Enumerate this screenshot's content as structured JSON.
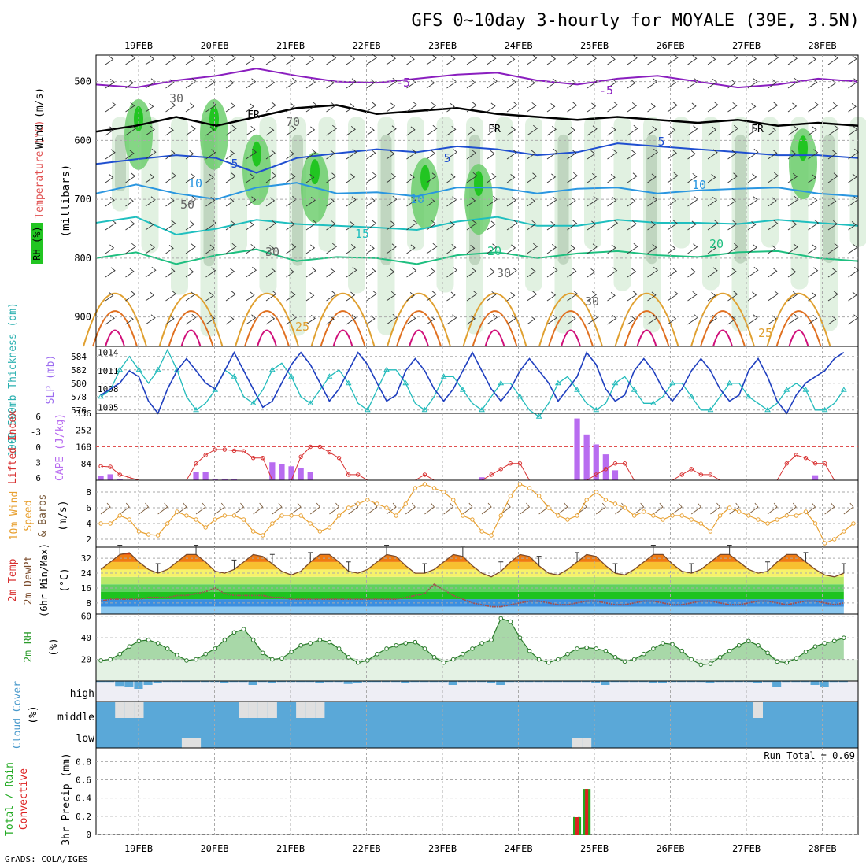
{
  "title": "GFS 0~10day 3-hourly for MOYALE (39E, 3.5N)",
  "credit": "GrADS: COLA/IGES",
  "date_labels": [
    "19FEB",
    "20FEB",
    "21FEB",
    "22FEB",
    "23FEB",
    "24FEB",
    "25FEB",
    "26FEB",
    "27FEB",
    "28FEB"
  ],
  "colors": {
    "rh": "#22c522",
    "temp_warm": "#e07020",
    "temp_cool": "#2050d0",
    "wind": "#000000",
    "thickness": "#22bbbb",
    "slp": "#1f3fbf",
    "lifted": "#d83030",
    "cape": "#b86cf0",
    "wind10": "#e8a030",
    "rh2m": "#2a9a2a",
    "cloud": "#5aa8d8",
    "precip_total": "#22aa22",
    "precip_conv": "#dd2222"
  },
  "chart_data": [
    {
      "type": "area",
      "panel": "upper-air",
      "labels": {
        "wind": "Wind (m/s)",
        "temperature": "Temperature (°C)",
        "rh": "RH (%)",
        "pressure": "(millibars)"
      },
      "ylim": [
        440,
        980
      ],
      "y_ticks": [
        500,
        600,
        700,
        800,
        900
      ],
      "contour_labels": [
        "-5",
        "-5",
        "FR",
        "FR",
        "FR",
        "5",
        "5",
        "5",
        "10",
        "10",
        "10",
        "15",
        "20",
        "20",
        "25",
        "25",
        "30",
        "30",
        "30",
        "30",
        "50",
        "70"
      ],
      "series": [
        {
          "name": "-5",
          "values": [
            505,
            510,
            498,
            490,
            478,
            490,
            500,
            502,
            495,
            488,
            485,
            498,
            505,
            495,
            490,
            500,
            510,
            505,
            495,
            500
          ]
        },
        {
          "name": "FR",
          "values": [
            585,
            575,
            560,
            575,
            560,
            545,
            540,
            555,
            550,
            545,
            555,
            560,
            565,
            560,
            565,
            570,
            565,
            575,
            570,
            575
          ]
        },
        {
          "name": "5",
          "values": [
            640,
            632,
            625,
            630,
            655,
            630,
            622,
            615,
            620,
            610,
            615,
            625,
            620,
            605,
            610,
            615,
            620,
            625,
            625,
            630
          ]
        },
        {
          "name": "10",
          "values": [
            690,
            675,
            690,
            700,
            680,
            672,
            690,
            688,
            695,
            680,
            680,
            690,
            682,
            680,
            690,
            685,
            682,
            680,
            690,
            695
          ]
        },
        {
          "name": "15",
          "values": [
            740,
            730,
            760,
            750,
            735,
            742,
            745,
            748,
            752,
            738,
            730,
            745,
            745,
            735,
            740,
            740,
            742,
            735,
            740,
            745
          ]
        },
        {
          "name": "20",
          "values": [
            800,
            790,
            810,
            795,
            785,
            805,
            798,
            800,
            810,
            795,
            790,
            800,
            792,
            788,
            795,
            798,
            790,
            788,
            800,
            805
          ]
        }
      ]
    },
    {
      "type": "line",
      "panel": "thickness-slp",
      "labels": {
        "left": "1000-500mb Thickness (dm)",
        "right": "SLP (mb)"
      },
      "left_ticks": [
        "584",
        "582",
        "580",
        "578",
        "576"
      ],
      "right_ticks": [
        "1014",
        "1011",
        "1008",
        "1005"
      ],
      "left_ylim": [
        575.5,
        585.5
      ],
      "right_ylim": [
        1004,
        1015
      ],
      "series": [
        {
          "name": "thickness",
          "axis": "left",
          "values": [
            578,
            579,
            582,
            584,
            582,
            580,
            582,
            585,
            582,
            578,
            576,
            577,
            579,
            582,
            581,
            578,
            577,
            579,
            582,
            583,
            581,
            578,
            577,
            579,
            581,
            582,
            580,
            577,
            576,
            579,
            582,
            582,
            580,
            577,
            576,
            578,
            581,
            581,
            579,
            577,
            576,
            578,
            580,
            580,
            578,
            576,
            575,
            577,
            580,
            581,
            579,
            577,
            576,
            577,
            580,
            581,
            579,
            577,
            577,
            578,
            580,
            580,
            578,
            576,
            576,
            578,
            580,
            580,
            578,
            577,
            576,
            577,
            579,
            580,
            579,
            576,
            576,
            577,
            579
          ]
        },
        {
          "name": "slp",
          "axis": "right",
          "values": [
            1007,
            1008,
            1009,
            1011,
            1010,
            1006,
            1004,
            1008,
            1011,
            1013,
            1011,
            1009,
            1008,
            1011,
            1014,
            1011,
            1008,
            1005,
            1006,
            1009,
            1012,
            1014,
            1012,
            1009,
            1006,
            1008,
            1011,
            1014,
            1012,
            1009,
            1006,
            1007,
            1011,
            1013,
            1011,
            1008,
            1006,
            1008,
            1011,
            1014,
            1011,
            1008,
            1006,
            1008,
            1011,
            1013,
            1011,
            1009,
            1006,
            1008,
            1010,
            1014,
            1012,
            1008,
            1006,
            1007,
            1011,
            1013,
            1011,
            1008,
            1006,
            1008,
            1011,
            1013,
            1011,
            1008,
            1006,
            1007,
            1011,
            1013,
            1010,
            1006,
            1004,
            1007,
            1009,
            1010,
            1011,
            1013,
            1014
          ]
        }
      ]
    },
    {
      "type": "bar",
      "panel": "lifted-cape",
      "labels": {
        "left": "Lifted Index",
        "right": "CAPE (J/kg)"
      },
      "left_ticks": [
        "6",
        "-3",
        "0",
        "3",
        "6"
      ],
      "right_ticks": [
        "336",
        "252",
        "168",
        "84"
      ],
      "cape_ylim": [
        0,
        336
      ],
      "lifted_ylim": [
        6,
        -6
      ],
      "lifted_index": [
        3.5,
        3.6,
        5,
        5.5,
        6,
        6,
        6,
        6,
        6,
        6,
        3,
        1.5,
        0.5,
        0.5,
        0.7,
        0.8,
        2,
        2,
        6,
        6,
        6,
        1.8,
        0,
        0,
        1,
        2,
        5,
        5,
        6,
        6,
        6,
        6,
        6,
        6,
        5,
        6,
        6,
        6,
        6,
        6,
        6,
        5,
        4,
        3,
        3,
        6,
        6,
        6,
        6,
        6,
        6,
        6,
        5,
        4,
        3,
        3,
        6,
        6,
        6,
        6,
        6,
        5,
        4,
        5,
        5,
        6,
        6,
        6,
        6,
        6,
        6,
        6,
        3,
        1.5,
        2,
        3,
        3,
        6,
        6,
        6
      ],
      "cape": [
        20,
        30,
        5,
        0,
        0,
        0,
        0,
        0,
        0,
        0,
        40,
        40,
        8,
        8,
        6,
        0,
        0,
        0,
        90,
        80,
        70,
        60,
        40,
        0,
        0,
        0,
        0,
        0,
        0,
        0,
        0,
        0,
        0,
        0,
        0,
        0,
        0,
        0,
        0,
        0,
        15,
        0,
        0,
        0,
        0,
        0,
        0,
        0,
        0,
        0,
        310,
        230,
        180,
        130,
        50,
        0,
        0,
        0,
        0,
        0,
        0,
        0,
        0,
        0,
        0,
        0,
        0,
        0,
        0,
        0,
        0,
        0,
        0,
        0,
        0,
        25,
        0,
        0,
        0,
        0
      ]
    },
    {
      "type": "line",
      "panel": "wind10m",
      "labels": {
        "left": "10m Wind Speed & Barbs (m/s)"
      },
      "y_ticks": [
        "8",
        "6",
        "4",
        "2"
      ],
      "ylim": [
        1,
        9.5
      ],
      "values": [
        4,
        4,
        5,
        4.5,
        3,
        2.6,
        2.5,
        4,
        5.5,
        5,
        4.5,
        3.5,
        4.5,
        5,
        5,
        4.5,
        3,
        2.5,
        4,
        5,
        5,
        5,
        4,
        3,
        3.5,
        5,
        6,
        6.5,
        7,
        6.5,
        6,
        5,
        6.5,
        8.5,
        9,
        8.5,
        8,
        7,
        5,
        4.5,
        3,
        2.5,
        5,
        7.5,
        9,
        8.5,
        7.5,
        6,
        5,
        4.5,
        5,
        7,
        8,
        7,
        6.5,
        6,
        5,
        5.5,
        5,
        4.5,
        5,
        5,
        4.5,
        4,
        3,
        5,
        6,
        5.5,
        5,
        4.5,
        4,
        4.5,
        5,
        5,
        5.5,
        4,
        1.5,
        2,
        3,
        4
      ]
    },
    {
      "type": "area",
      "panel": "temp2m",
      "labels": {
        "left": "2m Temp 2m DewPt (6hr Min/Max) (°C)"
      },
      "y_ticks": [
        "32",
        "24",
        "16",
        "8"
      ],
      "ylim": [
        2,
        38
      ],
      "temperature": [
        26,
        30,
        34,
        35,
        30,
        26,
        24,
        26,
        30,
        34,
        34,
        30,
        25,
        24,
        26,
        30,
        34,
        33,
        29,
        25,
        23,
        25,
        30,
        34,
        34,
        30,
        25,
        24,
        26,
        30,
        34,
        33,
        28,
        24,
        24,
        26,
        30,
        34,
        33,
        28,
        24,
        22,
        25,
        30,
        34,
        33,
        28,
        24,
        23,
        26,
        30,
        34,
        33,
        28,
        24,
        23,
        26,
        30,
        34,
        34,
        29,
        25,
        24,
        26,
        30,
        34,
        34,
        30,
        26,
        24,
        25,
        30,
        34,
        34,
        30,
        26,
        23,
        22,
        24
      ],
      "dewpoint": [
        9,
        10,
        10,
        10,
        10,
        11,
        11,
        11,
        12,
        12,
        13,
        14,
        16,
        13,
        12,
        12,
        12,
        12,
        11,
        11,
        10,
        10,
        10,
        10,
        10,
        10,
        10,
        10,
        10,
        10,
        10,
        10,
        11,
        12,
        13,
        18,
        15,
        12,
        10,
        8,
        7,
        6,
        6,
        7,
        8,
        9,
        9,
        8,
        7,
        7,
        8,
        9,
        9,
        8,
        7,
        7,
        8,
        9,
        9,
        8,
        7,
        7,
        8,
        9,
        9,
        8,
        7,
        7,
        8,
        9,
        9,
        8,
        7,
        8,
        9,
        9,
        8,
        7,
        8
      ]
    },
    {
      "type": "area",
      "panel": "rh2m",
      "labels": {
        "left": "2m RH (%)"
      },
      "y_ticks": [
        "60",
        "40",
        "20"
      ],
      "ylim": [
        0,
        62
      ],
      "values": [
        19,
        20,
        25,
        32,
        37,
        38,
        35,
        30,
        24,
        19,
        20,
        25,
        30,
        38,
        45,
        48,
        38,
        26,
        20,
        21,
        27,
        33,
        35,
        38,
        36,
        30,
        22,
        17,
        19,
        25,
        30,
        33,
        35,
        36,
        30,
        22,
        17,
        20,
        25,
        30,
        35,
        38,
        58,
        55,
        40,
        28,
        20,
        17,
        20,
        25,
        30,
        31,
        30,
        28,
        22,
        18,
        20,
        25,
        30,
        35,
        34,
        28,
        20,
        15,
        16,
        22,
        28,
        33,
        37,
        33,
        26,
        18,
        17,
        21,
        27,
        32,
        35,
        37,
        40
      ]
    },
    {
      "type": "bar",
      "panel": "cloud",
      "labels": {
        "left": "Cloud Cover (%)"
      },
      "layer_labels": [
        "high",
        "middle",
        "low"
      ],
      "high": [
        5,
        5,
        25,
        30,
        40,
        20,
        10,
        5,
        5,
        5,
        5,
        5,
        5,
        10,
        5,
        5,
        20,
        5,
        10,
        5,
        5,
        5,
        5,
        10,
        5,
        5,
        15,
        10,
        5,
        5,
        5,
        5,
        10,
        5,
        5,
        5,
        5,
        20,
        5,
        5,
        5,
        10,
        20,
        5,
        5,
        5,
        5,
        5,
        5,
        5,
        5,
        5,
        10,
        20,
        5,
        5,
        5,
        5,
        10,
        10,
        5,
        5,
        5,
        5,
        10,
        5,
        5,
        5,
        5,
        10,
        5,
        30,
        5,
        5,
        5,
        20,
        30,
        5,
        5
      ],
      "middle_gaps": [
        2,
        3,
        4,
        15,
        16,
        17,
        18,
        21,
        22,
        23,
        69
      ],
      "low_gaps": [
        9,
        10,
        50,
        51
      ]
    },
    {
      "type": "bar",
      "panel": "precip",
      "labels": {
        "left": "Total / Rain Convective 3hr Precip (mm)",
        "annotation": "Run Total = 0.69"
      },
      "y_ticks": [
        "0.8",
        "0.6",
        "0.4",
        "0.2",
        "0"
      ],
      "ylim": [
        0,
        0.95
      ],
      "total": {
        "index": [
          50,
          51
        ],
        "values": [
          0.19,
          0.5
        ]
      },
      "convective": {
        "index": [
          50,
          51
        ],
        "values": [
          0.19,
          0.5
        ]
      }
    }
  ]
}
